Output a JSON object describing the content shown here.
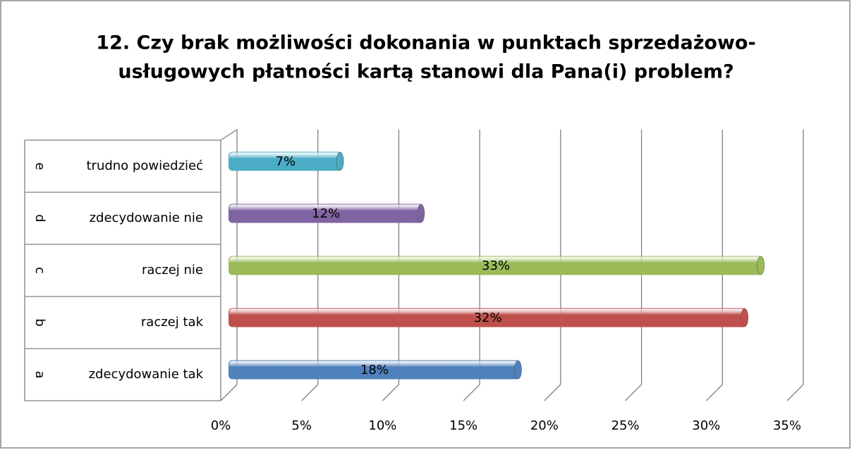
{
  "chart_data": {
    "type": "bar3d",
    "title": [
      "12. Czy brak możliwości dokonania w punktach sprzedażowo-",
      "usługowych płatności kartą stanowi dla Pana(i) problem?"
    ],
    "categories": [
      "zdecydowanie tak",
      "raczej tak",
      "raczej nie",
      "zdecydowanie nie",
      "trudno powiedzieć"
    ],
    "category_groups": [
      "a",
      "b",
      "c",
      "d",
      "e"
    ],
    "values": [
      18,
      32,
      33,
      12,
      7
    ],
    "value_labels": [
      "18%",
      "32%",
      "33%",
      "12%",
      "7%"
    ],
    "colors": [
      "#4f81bd",
      "#c0504d",
      "#9bbb59",
      "#8064a2",
      "#4bacc6"
    ],
    "xlim": [
      0,
      35
    ],
    "xticks": [
      {
        "value": 0,
        "label": "0%"
      },
      {
        "value": 5,
        "label": "5%"
      },
      {
        "value": 10,
        "label": "10%"
      },
      {
        "value": 15,
        "label": "15%"
      },
      {
        "value": 20,
        "label": "20%"
      },
      {
        "value": 25,
        "label": "25%"
      },
      {
        "value": 30,
        "label": "30%"
      },
      {
        "value": 35,
        "label": "35%"
      }
    ],
    "grid": true
  }
}
